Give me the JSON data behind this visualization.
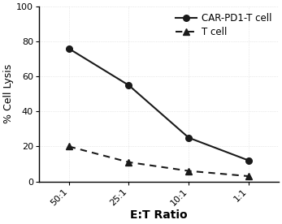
{
  "x_labels": [
    "50:1",
    "25:1",
    "10:1",
    "1:1"
  ],
  "x_values": [
    0,
    1,
    2,
    3
  ],
  "car_pd1_t_values": [
    76,
    55,
    25,
    12
  ],
  "t_cell_values": [
    20,
    11,
    6,
    3
  ],
  "car_pd1_label": "CAR-PD1-T cell",
  "t_cell_label": "T cell",
  "ylabel": "% Cell Lysis",
  "xlabel": "E:T Ratio",
  "ylim": [
    0,
    100
  ],
  "yticks": [
    0,
    20,
    40,
    60,
    80,
    100
  ],
  "line_color": "#1a1a1a",
  "bg_color": "#ffffff",
  "legend_fontsize": 8.5,
  "axis_fontsize": 9,
  "tick_fontsize": 8,
  "xlabel_fontsize": 10,
  "figwidth": 3.47,
  "figheight": 2.76,
  "dpi": 100
}
